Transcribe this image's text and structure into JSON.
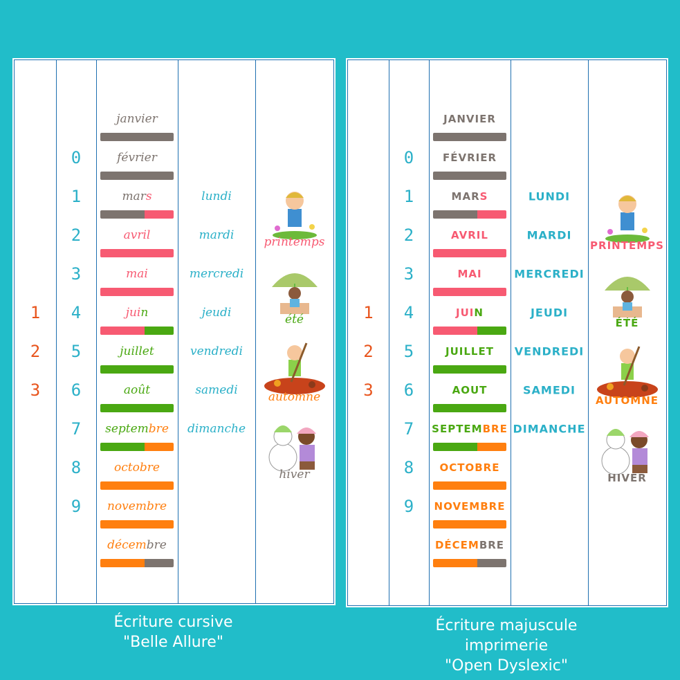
{
  "colors": {
    "background": "#21bdc9",
    "gray": "#7d746f",
    "pink": "#f75a72",
    "green": "#4aa812",
    "orange": "#ff7f0f",
    "teal": "#2bb0c8",
    "red": "#e8541c"
  },
  "digits": [
    "0",
    "1",
    "2",
    "3",
    "4",
    "5",
    "6",
    "7",
    "8",
    "9"
  ],
  "small_numbers": [
    "1",
    "2",
    "3"
  ],
  "left_panel": {
    "months": [
      {
        "parts": [
          {
            "t": "janvier",
            "c": "gray"
          }
        ],
        "bar": [
          [
            "gray",
            1
          ]
        ]
      },
      {
        "parts": [
          {
            "t": "février",
            "c": "gray"
          }
        ],
        "bar": [
          [
            "gray",
            1
          ]
        ]
      },
      {
        "parts": [
          {
            "t": "mar",
            "c": "gray"
          },
          {
            "t": "s",
            "c": "pink"
          }
        ],
        "bar": [
          [
            "gray",
            0.6
          ],
          [
            "pink",
            0.4
          ]
        ]
      },
      {
        "parts": [
          {
            "t": "avril",
            "c": "pink"
          }
        ],
        "bar": [
          [
            "pink",
            1
          ]
        ]
      },
      {
        "parts": [
          {
            "t": "mai",
            "c": "pink"
          }
        ],
        "bar": [
          [
            "pink",
            1
          ]
        ]
      },
      {
        "parts": [
          {
            "t": "jui",
            "c": "pink"
          },
          {
            "t": "n",
            "c": "green"
          }
        ],
        "bar": [
          [
            "pink",
            0.6
          ],
          [
            "green",
            0.4
          ]
        ]
      },
      {
        "parts": [
          {
            "t": "juillet",
            "c": "green"
          }
        ],
        "bar": [
          [
            "green",
            1
          ]
        ]
      },
      {
        "parts": [
          {
            "t": "août",
            "c": "green"
          }
        ],
        "bar": [
          [
            "green",
            1
          ]
        ]
      },
      {
        "parts": [
          {
            "t": "septem",
            "c": "green"
          },
          {
            "t": "bre",
            "c": "orange"
          }
        ],
        "bar": [
          [
            "green",
            0.6
          ],
          [
            "orange",
            0.4
          ]
        ]
      },
      {
        "parts": [
          {
            "t": "octobre",
            "c": "orange"
          }
        ],
        "bar": [
          [
            "orange",
            1
          ]
        ]
      },
      {
        "parts": [
          {
            "t": "novembre",
            "c": "orange"
          }
        ],
        "bar": [
          [
            "orange",
            1
          ]
        ]
      },
      {
        "parts": [
          {
            "t": "décem",
            "c": "orange"
          },
          {
            "t": "bre",
            "c": "gray"
          }
        ],
        "bar": [
          [
            "orange",
            0.6
          ],
          [
            "gray",
            0.4
          ]
        ]
      }
    ],
    "days": [
      "lundi",
      "mardi",
      "mercredi",
      "jeudi",
      "vendredi",
      "samedi",
      "dimanche"
    ],
    "seasons": [
      {
        "label": "printemps",
        "c": "pink",
        "icon": "spring-boy-icon"
      },
      {
        "label": "été",
        "c": "green",
        "icon": "summer-umbrella-icon"
      },
      {
        "label": "automne",
        "c": "orange",
        "icon": "autumn-leaves-icon"
      },
      {
        "label": "hiver",
        "c": "gray",
        "icon": "winter-snowman-icon"
      }
    ],
    "caption": [
      "Écriture cursive",
      "\"Belle Allure\""
    ]
  },
  "right_panel": {
    "months": [
      {
        "parts": [
          {
            "t": "JANVIER",
            "c": "gray"
          }
        ],
        "bar": [
          [
            "gray",
            1
          ]
        ]
      },
      {
        "parts": [
          {
            "t": "FÉVRIER",
            "c": "gray"
          }
        ],
        "bar": [
          [
            "gray",
            1
          ]
        ]
      },
      {
        "parts": [
          {
            "t": "MAR",
            "c": "gray"
          },
          {
            "t": "S",
            "c": "pink"
          }
        ],
        "bar": [
          [
            "gray",
            0.6
          ],
          [
            "pink",
            0.4
          ]
        ]
      },
      {
        "parts": [
          {
            "t": "AVRIL",
            "c": "pink"
          }
        ],
        "bar": [
          [
            "pink",
            1
          ]
        ]
      },
      {
        "parts": [
          {
            "t": "MAI",
            "c": "pink"
          }
        ],
        "bar": [
          [
            "pink",
            1
          ]
        ]
      },
      {
        "parts": [
          {
            "t": "JUI",
            "c": "pink"
          },
          {
            "t": "N",
            "c": "green"
          }
        ],
        "bar": [
          [
            "pink",
            0.6
          ],
          [
            "green",
            0.4
          ]
        ]
      },
      {
        "parts": [
          {
            "t": "JUILLET",
            "c": "green"
          }
        ],
        "bar": [
          [
            "green",
            1
          ]
        ]
      },
      {
        "parts": [
          {
            "t": "AOUT",
            "c": "green"
          }
        ],
        "bar": [
          [
            "green",
            1
          ]
        ]
      },
      {
        "parts": [
          {
            "t": "SEPTEM",
            "c": "green"
          },
          {
            "t": "BRE",
            "c": "orange"
          }
        ],
        "bar": [
          [
            "green",
            0.6
          ],
          [
            "orange",
            0.4
          ]
        ]
      },
      {
        "parts": [
          {
            "t": "OCTOBRE",
            "c": "orange"
          }
        ],
        "bar": [
          [
            "orange",
            1
          ]
        ]
      },
      {
        "parts": [
          {
            "t": "NOVEMBRE",
            "c": "orange"
          }
        ],
        "bar": [
          [
            "orange",
            1
          ]
        ]
      },
      {
        "parts": [
          {
            "t": "DÉCEM",
            "c": "orange"
          },
          {
            "t": "BRE",
            "c": "gray"
          }
        ],
        "bar": [
          [
            "orange",
            0.6
          ],
          [
            "gray",
            0.4
          ]
        ]
      }
    ],
    "days": [
      "LUNDI",
      "MARDI",
      "MERCREDI",
      "JEUDI",
      "VENDREDI",
      "SAMEDI",
      "DIMANCHE"
    ],
    "seasons": [
      {
        "label": "PRINTEMPS",
        "c": "pink",
        "icon": "spring-boy-icon"
      },
      {
        "label": "ÉTÉ",
        "c": "green",
        "icon": "summer-umbrella-icon"
      },
      {
        "label": "AUTOMNE",
        "c": "orange",
        "icon": "autumn-leaves-icon"
      },
      {
        "label": "HIVER",
        "c": "gray",
        "icon": "winter-snowman-icon"
      }
    ],
    "caption": [
      "Écriture majuscule imprimerie",
      "\"Open Dyslexic\""
    ]
  }
}
